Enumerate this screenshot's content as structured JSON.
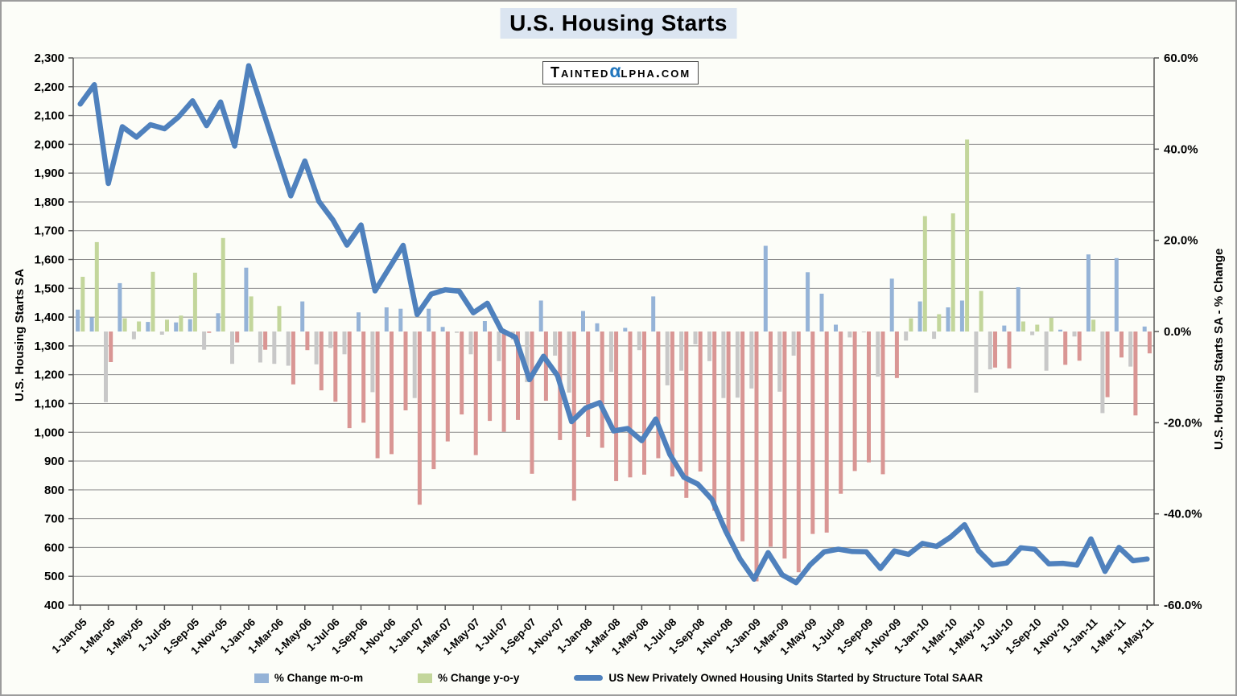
{
  "watermark": {
    "part1": "Tainted",
    "alpha": "α",
    "part2": "lpha.com"
  },
  "chart_data": {
    "type": "bar+line combo",
    "title": "U.S. Housing Starts",
    "x_months": [
      "Jan-05",
      "Feb-05",
      "Mar-05",
      "Apr-05",
      "May-05",
      "Jun-05",
      "Jul-05",
      "Aug-05",
      "Sep-05",
      "Oct-05",
      "Nov-05",
      "Dec-05",
      "Jan-06",
      "Feb-06",
      "Mar-06",
      "Apr-06",
      "May-06",
      "Jun-06",
      "Jul-06",
      "Aug-06",
      "Sep-06",
      "Oct-06",
      "Nov-06",
      "Dec-06",
      "Jan-07",
      "Feb-07",
      "Mar-07",
      "Apr-07",
      "May-07",
      "Jun-07",
      "Jul-07",
      "Aug-07",
      "Sep-07",
      "Oct-07",
      "Nov-07",
      "Dec-07",
      "Jan-08",
      "Feb-08",
      "Mar-08",
      "Apr-08",
      "May-08",
      "Jun-08",
      "Jul-08",
      "Aug-08",
      "Sep-08",
      "Oct-08",
      "Nov-08",
      "Dec-08",
      "Jan-09",
      "Feb-09",
      "Mar-09",
      "Apr-09",
      "May-09",
      "Jun-09",
      "Jul-09",
      "Aug-09",
      "Sep-09",
      "Oct-09",
      "Nov-09",
      "Dec-09",
      "Jan-10",
      "Feb-10",
      "Mar-10",
      "Apr-10",
      "May-10",
      "Jun-10",
      "Jul-10",
      "Aug-10",
      "Sep-10",
      "Oct-10",
      "Nov-10",
      "Dec-10",
      "Jan-11",
      "Feb-11",
      "Mar-11",
      "Apr-11",
      "May-11"
    ],
    "x_tick_labels": [
      "1-Jan-05",
      "1-Mar-05",
      "1-May-05",
      "1-Jul-05",
      "1-Sep-05",
      "1-Nov-05",
      "1-Jan-06",
      "1-Mar-06",
      "1-May-06",
      "1-Jul-06",
      "1-Sep-06",
      "1-Nov-06",
      "1-Jan-07",
      "1-Mar-07",
      "1-May-07",
      "1-Jul-07",
      "1-Sep-07",
      "1-Nov-07",
      "1-Jan-08",
      "1-Mar-08",
      "1-May-08",
      "1-Jul-08",
      "1-Sep-08",
      "1-Nov-08",
      "1-Jan-09",
      "1-Mar-09",
      "1-May-09",
      "1-Jul-09",
      "1-Sep-09",
      "1-Nov-09",
      "1-Jan-10",
      "1-Mar-10",
      "1-May-10",
      "1-Jul-10",
      "1-Sep-10",
      "1-Nov-10",
      "1-Jan-11",
      "1-Mar-11",
      "1-May-11"
    ],
    "left_axis": {
      "title": "U.S. Housing Starts SA",
      "min": 400,
      "max": 2300,
      "step": 100,
      "tick_labels": [
        "2,300",
        "2,200",
        "2,100",
        "2,000",
        "1,900",
        "1,800",
        "1,700",
        "1,600",
        "1,500",
        "1,400",
        "1,300",
        "1,200",
        "1,100",
        "1,000",
        "900",
        "800",
        "700",
        "600",
        "500",
        "400"
      ]
    },
    "right_axis": {
      "title": "U.S. Housing Starts SA - % Change",
      "min": -60,
      "max": 60,
      "step": 20,
      "tick_labels": [
        "60.0%",
        "40.0%",
        "20.0%",
        "0.0%",
        "-20.0%",
        "-40.0%",
        "-60.0%"
      ]
    },
    "grid_color": "#8C8C8C",
    "axis_color": "#595959",
    "legend_position": "bottom",
    "series": [
      {
        "name": "% Change m-o-m",
        "type": "bar",
        "axis": "right",
        "color_pos": "#95B3D7",
        "color_neg": "#C8C8C8",
        "values": [
          4.8,
          3.1,
          -15.5,
          10.6,
          -1.7,
          2.1,
          -0.7,
          2.0,
          2.7,
          -4.0,
          4.0,
          -7.1,
          14.0,
          -6.8,
          -7.1,
          -7.5,
          6.6,
          -7.2,
          -3.6,
          -5.0,
          4.2,
          -13.3,
          5.3,
          5.0,
          -14.6,
          5.0,
          1.0,
          -0.3,
          -5.0,
          2.3,
          -6.5,
          -1.8,
          -11.1,
          6.8,
          -5.3,
          -13.4,
          4.5,
          1.8,
          -8.9,
          0.8,
          -4.1,
          7.7,
          -11.8,
          -8.6,
          -2.8,
          -6.5,
          -14.6,
          -14.5,
          -12.5,
          18.8,
          -13.2,
          -5.3,
          13.0,
          8.3,
          1.5,
          -1.3,
          -0.2,
          -9.9,
          11.6,
          -2.0,
          6.6,
          -1.6,
          5.3,
          6.8,
          -13.4,
          -8.3,
          1.3,
          9.7,
          -0.8,
          -8.6,
          0.4,
          -1.1,
          16.9,
          -17.9,
          16.1,
          -7.7,
          1.1
        ]
      },
      {
        "name": "% Change y-o-y",
        "type": "bar",
        "axis": "right",
        "color_pos": "#C3D69B",
        "color_neg": "#D99694",
        "values": [
          12.0,
          19.6,
          -6.7,
          2.9,
          2.2,
          13.1,
          2.6,
          3.5,
          12.9,
          -0.3,
          20.5,
          -2.4,
          7.7,
          -4.0,
          5.6,
          -11.6,
          -4.1,
          -12.9,
          -15.4,
          -21.2,
          -20.0,
          -27.8,
          -26.9,
          -17.3,
          -38.0,
          -30.2,
          -24.1,
          -18.2,
          -27.1,
          -19.6,
          -22.0,
          -19.4,
          -31.2,
          -15.2,
          -23.8,
          -37.1,
          -23.1,
          -25.5,
          -32.8,
          -32.0,
          -31.4,
          -27.8,
          -31.8,
          -36.5,
          -30.7,
          -39.3,
          -45.3,
          -46.0,
          -54.8,
          -47.2,
          -49.8,
          -52.8,
          -44.4,
          -44.1,
          -35.6,
          -30.6,
          -28.7,
          -31.3,
          -10.2,
          2.9,
          25.3,
          3.8,
          25.9,
          42.1,
          8.9,
          -7.9,
          -8.1,
          2.2,
          1.5,
          3.0,
          -7.3,
          -6.4,
          2.6,
          -14.4,
          -5.7,
          -18.4,
          -4.8
        ]
      },
      {
        "name": "US New Privately Owned Housing Units Started by Structure Total SAAR",
        "type": "line",
        "axis": "left",
        "color": "#4F81BD",
        "values": [
          2140,
          2207,
          1864,
          2061,
          2025,
          2068,
          2054,
          2095,
          2151,
          2065,
          2147,
          1994,
          2273,
          2119,
          1969,
          1821,
          1942,
          1802,
          1737,
          1650,
          1720,
          1491,
          1570,
          1649,
          1409,
          1480,
          1495,
          1490,
          1415,
          1448,
          1354,
          1330,
          1183,
          1264,
          1197,
          1037,
          1084,
          1103,
          1005,
          1013,
          971,
          1046,
          923,
          844,
          820,
          767,
          655,
          560,
          490,
          582,
          505,
          478,
          540,
          585,
          594,
          586,
          585,
          527,
          588,
          576,
          614,
          604,
          636,
          679,
          588,
          539,
          546,
          599,
          594,
          543,
          545,
          539,
          630,
          517,
          600,
          554,
          560
        ]
      }
    ]
  }
}
